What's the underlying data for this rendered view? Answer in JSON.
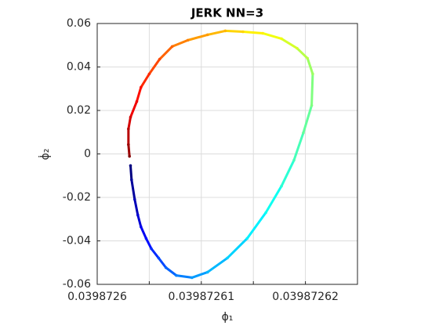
{
  "chart_data": {
    "type": "line",
    "title": "JERK NN=3",
    "xlabel": "ϕ₁",
    "ylabel": "ϕ̇₂",
    "x": [
      0.0398726032,
      0.0398726033,
      0.0398726036,
      0.0398726039,
      0.0398726042,
      0.0398726047,
      0.0398726052,
      0.0398726059,
      0.0398726066,
      0.0398726076,
      0.0398726091,
      0.0398726106,
      0.0398726125,
      0.0398726144,
      0.0398726162,
      0.0398726177,
      0.0398726189,
      0.0398726198,
      0.0398726206,
      0.0398726207,
      0.0398726202,
      0.0398726192,
      0.0398726177,
      0.0398726159,
      0.039872614,
      0.0398726123,
      0.0398726106,
      0.0398726087,
      0.0398726072,
      0.039872606,
      0.039872605,
      0.0398726042,
      0.0398726038,
      0.0398726032,
      0.039872603,
      0.039872603,
      0.0398726031
    ],
    "y": [
      -0.0054,
      -0.0119,
      -0.0209,
      -0.0281,
      -0.0335,
      -0.0389,
      -0.0436,
      -0.0479,
      -0.0523,
      -0.0559,
      -0.0569,
      -0.0544,
      -0.0479,
      -0.0389,
      -0.027,
      -0.0148,
      -0.0029,
      0.0097,
      0.0223,
      0.0368,
      0.044,
      0.0486,
      0.053,
      0.0555,
      0.0562,
      0.0566,
      0.0548,
      0.0523,
      0.0494,
      0.0436,
      0.0368,
      0.0306,
      0.0241,
      0.0169,
      0.0115,
      0.0043,
      -0.0011
    ],
    "colormap": "jet",
    "xlim": [
      0.0398726,
      0.039872625
    ],
    "xticks": [
      0.0398726,
      0.03987261,
      0.03987262
    ],
    "xminorticks": [
      0.039872605,
      0.039872615
    ],
    "ylim": [
      -0.06,
      0.06
    ],
    "yticks": [
      -0.06,
      -0.04,
      -0.02,
      0,
      0.02,
      0.04,
      0.06
    ],
    "grid": true
  }
}
